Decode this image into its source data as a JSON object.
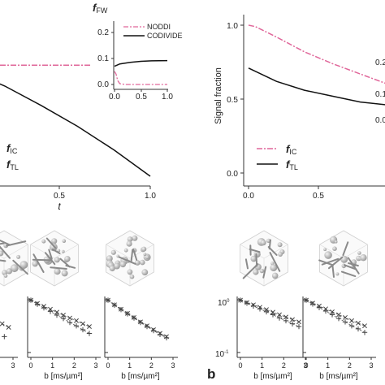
{
  "colors": {
    "noddi": "#e0679a",
    "codivide": "#111111",
    "axis": "#333333",
    "marker": "#444444"
  },
  "panel_label": "b",
  "chart_data": [
    {
      "type": "line",
      "id": "left-main",
      "xlabel": "t",
      "xlim": [
        0.0,
        1.0
      ],
      "xticks": [
        "0.5",
        "1.0"
      ],
      "ylim": [
        0.0,
        1.0
      ],
      "legend": {
        "ic_label": "f",
        "ic_sub": "IC",
        "tl_label": "f",
        "tl_sub": "TL"
      },
      "series": [
        {
          "key": "noddi",
          "x": [
            0.0,
            0.5,
            1.0
          ],
          "values": [
            0.87,
            0.87,
            0.87
          ]
        },
        {
          "key": "codivide",
          "x": [
            0.0,
            0.2,
            0.4,
            0.6,
            0.8,
            1.0
          ],
          "values": [
            0.83,
            0.72,
            0.58,
            0.43,
            0.26,
            0.07
          ]
        }
      ]
    },
    {
      "type": "line",
      "id": "left-inset",
      "title": "f",
      "title_sub": "FW",
      "xlim": [
        0.0,
        1.0
      ],
      "xticks": [
        "0.0",
        "0.5",
        "1.0"
      ],
      "ylim": [
        0.0,
        0.25
      ],
      "yticks": [
        "0.0",
        "0.1",
        "0.2"
      ],
      "legend_position": "top-right",
      "series": [
        {
          "key": "noddi",
          "name": "NODDI",
          "x": [
            0.0,
            0.03,
            0.06,
            0.1,
            0.2,
            1.0
          ],
          "values": [
            0.05,
            0.04,
            0.015,
            0.003,
            0.0,
            0.0
          ]
        },
        {
          "key": "codivide",
          "name": "CODIVIDE",
          "x": [
            0.0,
            0.1,
            0.3,
            0.5,
            0.7,
            1.0
          ],
          "values": [
            0.07,
            0.079,
            0.085,
            0.089,
            0.091,
            0.092
          ]
        }
      ]
    },
    {
      "type": "line",
      "id": "right-main",
      "ylabel": "Signal fraction",
      "xlim": [
        0.0,
        1.0
      ],
      "xticks": [
        "0.0",
        "0.5"
      ],
      "ylim": [
        0.0,
        1.0
      ],
      "yticks": [
        "0.0",
        "0.5",
        "1.0"
      ],
      "edge_labels": [
        "0.2",
        "0.1",
        "0.0"
      ],
      "legend": {
        "ic_label": "f",
        "ic_sub": "IC",
        "tl_label": "f",
        "tl_sub": "TL"
      },
      "series": [
        {
          "key": "noddi",
          "x": [
            0.0,
            0.05,
            0.2,
            0.4,
            0.6,
            0.8,
            1.0
          ],
          "values": [
            1.0,
            0.99,
            0.92,
            0.82,
            0.74,
            0.67,
            0.6
          ]
        },
        {
          "key": "codivide",
          "x": [
            0.0,
            0.2,
            0.4,
            0.6,
            0.8,
            1.0
          ],
          "values": [
            0.71,
            0.62,
            0.56,
            0.52,
            0.48,
            0.46
          ]
        }
      ]
    },
    {
      "type": "scatter",
      "id": "signal-decay-1",
      "xlabel": "b [ms/µm²]",
      "xticks": [
        "0",
        "1",
        "2",
        "3"
      ],
      "log_y": true,
      "series": [
        {
          "marker": "x",
          "x": [
            2.5,
            2.8
          ],
          "values": [
            0.35,
            0.3
          ]
        },
        {
          "marker": "+",
          "x": [
            2.6
          ],
          "values": [
            0.2
          ]
        }
      ]
    },
    {
      "type": "scatter",
      "id": "signal-decay-2",
      "xlabel": "b [ms/µm²]",
      "xticks": [
        "0",
        "1",
        "2",
        "3"
      ],
      "log_y": true,
      "series": [
        {
          "marker": "x",
          "x": [
            0.0,
            0.3,
            0.6,
            0.9,
            1.2,
            1.5,
            1.8,
            2.1,
            2.4,
            2.7
          ],
          "values": [
            0.98,
            0.85,
            0.75,
            0.66,
            0.58,
            0.51,
            0.45,
            0.4,
            0.35,
            0.31
          ]
        },
        {
          "marker": "+",
          "x": [
            0.0,
            0.3,
            0.6,
            0.9,
            1.2,
            1.5,
            1.8,
            2.1,
            2.4,
            2.7
          ],
          "values": [
            0.98,
            0.82,
            0.7,
            0.6,
            0.51,
            0.44,
            0.37,
            0.32,
            0.27,
            0.23
          ]
        }
      ]
    },
    {
      "type": "scatter",
      "id": "signal-decay-3",
      "xlabel": "b [ms/µm²]",
      "xticks": [
        "0",
        "1",
        "2",
        "3"
      ],
      "log_y": true,
      "series": [
        {
          "marker": "x",
          "x": [
            0.0,
            0.3,
            0.6,
            0.9,
            1.2,
            1.5,
            1.8,
            2.1,
            2.4,
            2.7
          ],
          "values": [
            0.98,
            0.8,
            0.66,
            0.55,
            0.46,
            0.38,
            0.32,
            0.27,
            0.23,
            0.2
          ]
        },
        {
          "marker": "+",
          "x": [
            0.0,
            0.3,
            0.6,
            0.9,
            1.2,
            1.5,
            1.8,
            2.1,
            2.4,
            2.7
          ],
          "values": [
            0.98,
            0.79,
            0.65,
            0.54,
            0.45,
            0.37,
            0.31,
            0.26,
            0.22,
            0.19
          ]
        }
      ]
    },
    {
      "type": "scatter",
      "id": "signal-decay-4",
      "xlabel": "b [ms/µm²]",
      "xticks": [
        "0",
        "1",
        "2",
        "3"
      ],
      "log_y": true,
      "yticks": [
        "10",
        "10"
      ],
      "ytick_exponents": [
        "0",
        "-1"
      ],
      "ylim": [
        0.1,
        1.0
      ],
      "series": [
        {
          "marker": "x",
          "x": [
            0.0,
            0.3,
            0.6,
            0.9,
            1.2,
            1.5,
            1.8,
            2.1,
            2.4,
            2.7
          ],
          "values": [
            0.98,
            0.88,
            0.8,
            0.72,
            0.65,
            0.58,
            0.52,
            0.47,
            0.42,
            0.38
          ]
        },
        {
          "marker": "+",
          "x": [
            0.0,
            0.3,
            0.6,
            0.9,
            1.2,
            1.5,
            1.8,
            2.1,
            2.4,
            2.7
          ],
          "values": [
            0.98,
            0.86,
            0.76,
            0.67,
            0.59,
            0.52,
            0.45,
            0.4,
            0.35,
            0.31
          ]
        }
      ]
    },
    {
      "type": "scatter",
      "id": "signal-decay-5",
      "xlabel": "b [ms/µm²]",
      "xticks": [
        "0",
        "1",
        "2",
        "3"
      ],
      "log_y": true,
      "series": [
        {
          "marker": "x",
          "x": [
            0.0,
            0.3,
            0.6,
            0.9,
            1.2,
            1.5,
            1.8,
            2.1,
            2.4,
            2.7
          ],
          "values": [
            0.98,
            0.86,
            0.76,
            0.67,
            0.59,
            0.52,
            0.46,
            0.4,
            0.36,
            0.32
          ]
        },
        {
          "marker": "+",
          "x": [
            0.0,
            0.3,
            0.6,
            0.9,
            1.2,
            1.5,
            1.8,
            2.1,
            2.4,
            2.7
          ],
          "values": [
            0.98,
            0.83,
            0.71,
            0.61,
            0.52,
            0.44,
            0.38,
            0.32,
            0.28,
            0.24
          ]
        }
      ]
    }
  ]
}
